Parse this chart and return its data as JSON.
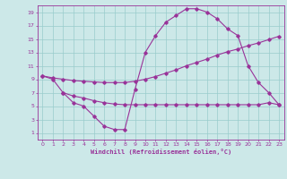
{
  "bg_color": "#cce8e8",
  "line_color": "#993399",
  "grid_color": "#99cccc",
  "xlabel": "Windchill (Refroidissement éolien,°C)",
  "xlabel_color": "#993399",
  "tick_color": "#993399",
  "xlim": [
    -0.5,
    23.5
  ],
  "ylim": [
    0,
    20
  ],
  "xticks": [
    0,
    1,
    2,
    3,
    4,
    5,
    6,
    7,
    8,
    9,
    10,
    11,
    12,
    13,
    14,
    15,
    16,
    17,
    18,
    19,
    20,
    21,
    22,
    23
  ],
  "yticks": [
    1,
    3,
    5,
    7,
    9,
    11,
    13,
    15,
    17,
    19
  ],
  "line1_x": [
    0,
    1,
    2,
    3,
    4,
    5,
    6,
    7,
    8,
    9,
    10,
    11,
    12,
    13,
    14,
    15,
    16,
    17,
    18,
    19,
    20,
    21,
    22,
    23
  ],
  "line1_y": [
    9.5,
    9.0,
    7.0,
    5.5,
    5.0,
    3.5,
    2.0,
    1.5,
    1.5,
    7.5,
    13.0,
    15.5,
    17.5,
    18.5,
    19.5,
    19.5,
    19.0,
    18.0,
    16.5,
    15.5,
    11.0,
    8.5,
    7.0,
    5.2
  ],
  "line2_x": [
    0,
    1,
    2,
    3,
    4,
    5,
    6,
    7,
    8,
    9,
    10,
    11,
    12,
    13,
    14,
    15,
    16,
    17,
    18,
    19,
    20,
    21,
    22,
    23
  ],
  "line2_y": [
    9.5,
    9.2,
    9.0,
    8.8,
    8.7,
    8.6,
    8.5,
    8.5,
    8.5,
    8.7,
    9.0,
    9.4,
    9.9,
    10.4,
    11.0,
    11.5,
    12.0,
    12.6,
    13.1,
    13.5,
    14.0,
    14.4,
    14.9,
    15.4
  ],
  "line3_x": [
    2,
    3,
    4,
    5,
    6,
    7,
    8,
    9,
    10,
    11,
    12,
    13,
    14,
    15,
    16,
    17,
    18,
    19,
    20,
    21,
    22,
    23
  ],
  "line3_y": [
    7.0,
    6.5,
    6.2,
    5.8,
    5.5,
    5.3,
    5.2,
    5.2,
    5.2,
    5.2,
    5.2,
    5.2,
    5.2,
    5.2,
    5.2,
    5.2,
    5.2,
    5.2,
    5.2,
    5.2,
    5.5,
    5.2
  ]
}
